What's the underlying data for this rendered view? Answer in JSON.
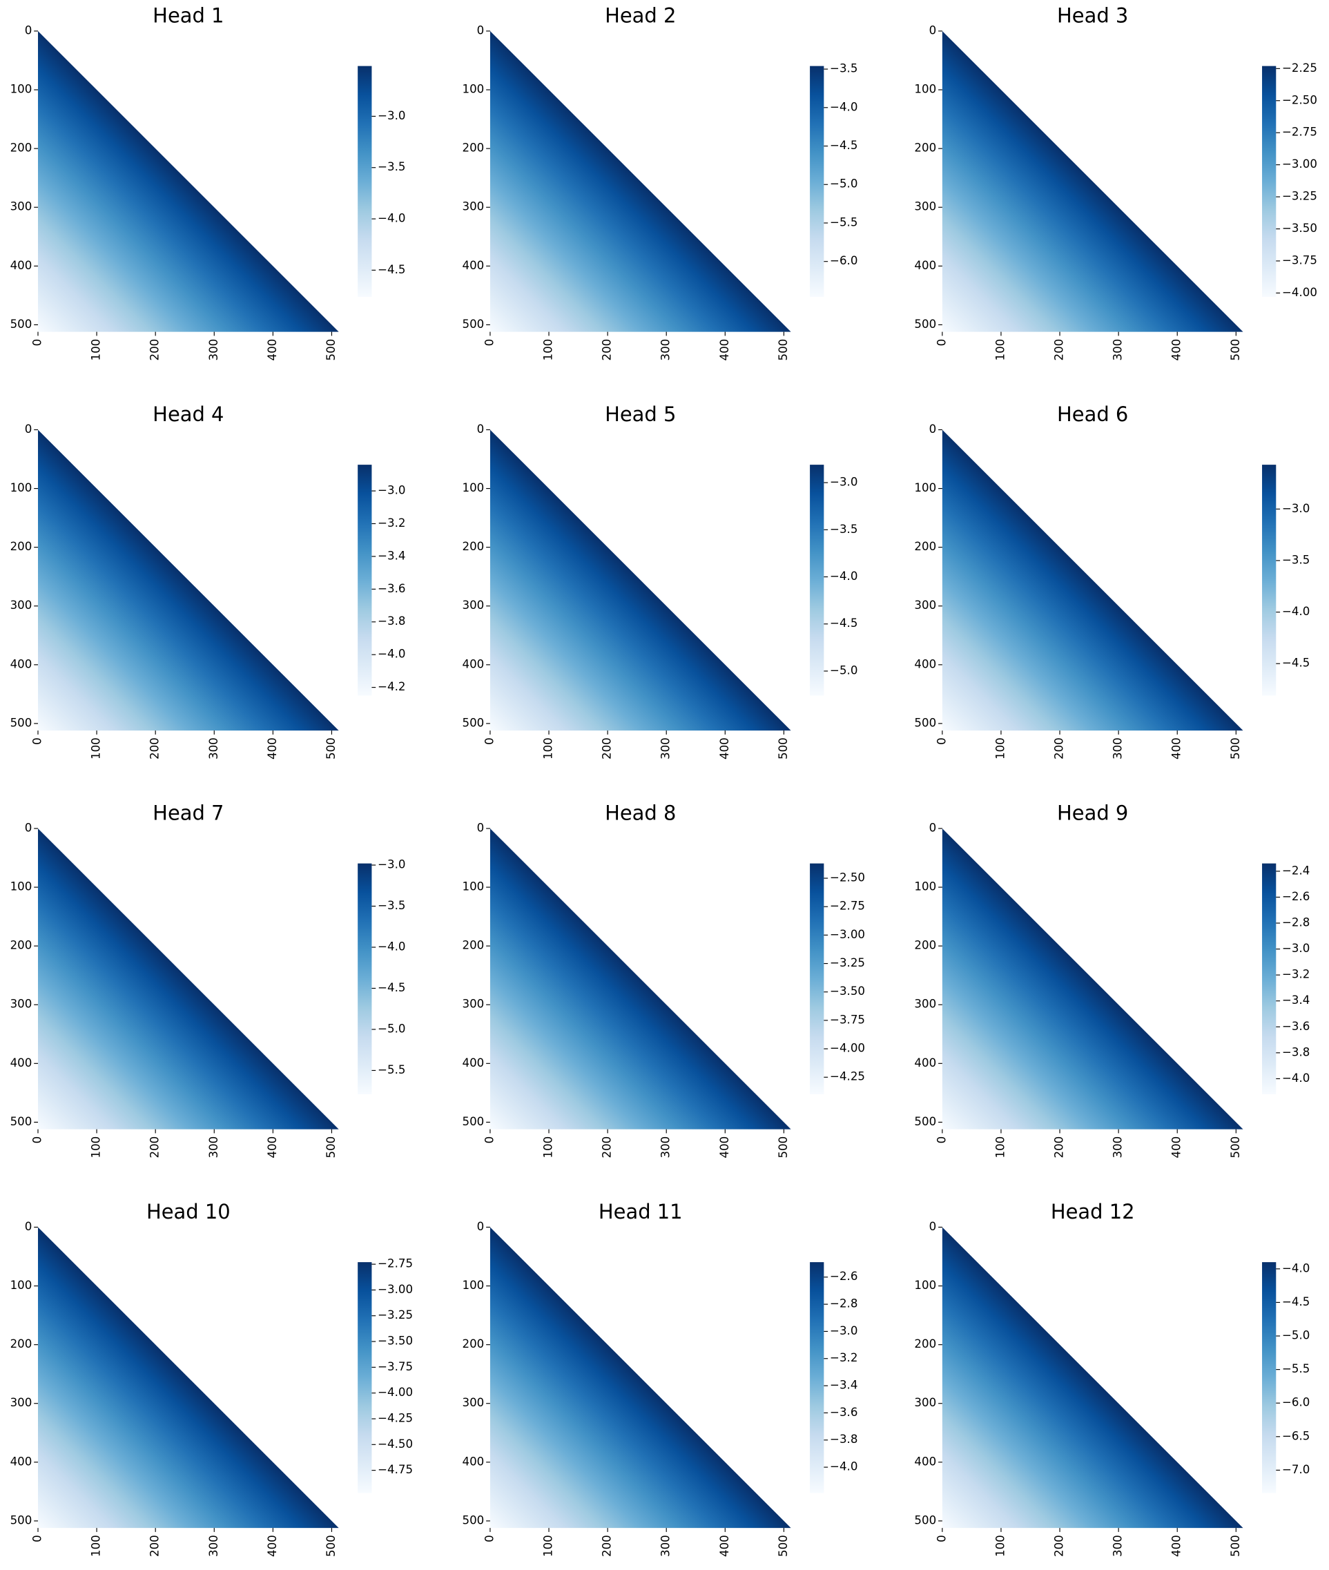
{
  "chart_data": [
    {
      "type": "heatmap",
      "title": "Head 1",
      "xlim": [
        0,
        512
      ],
      "ylim": [
        0,
        512
      ],
      "invert_y": true,
      "xticks": [
        0,
        100,
        200,
        300,
        400,
        500
      ],
      "yticks": [
        0,
        100,
        200,
        300,
        400,
        500
      ],
      "colormap": "Blues",
      "clim": [
        -4.76,
        -2.51
      ],
      "cticks": [
        {
          "value": -3,
          "label": "−3.0"
        },
        {
          "value": -3.5,
          "label": "−3.5"
        },
        {
          "value": -4,
          "label": "−4.0"
        },
        {
          "value": -4.5,
          "label": "−4.5"
        }
      ]
    },
    {
      "type": "heatmap",
      "title": "Head 2",
      "xlim": [
        0,
        512
      ],
      "ylim": [
        0,
        512
      ],
      "invert_y": true,
      "xticks": [
        0,
        100,
        200,
        300,
        400,
        500
      ],
      "yticks": [
        0,
        100,
        200,
        300,
        400,
        500
      ],
      "colormap": "Blues",
      "clim": [
        -6.46,
        -3.46
      ],
      "cticks": [
        {
          "value": -3.5,
          "label": "−3.5"
        },
        {
          "value": -4,
          "label": "−4.0"
        },
        {
          "value": -4.5,
          "label": "−4.5"
        },
        {
          "value": -5,
          "label": "−5.0"
        },
        {
          "value": -5.5,
          "label": "−5.5"
        },
        {
          "value": -6,
          "label": "−6.0"
        }
      ]
    },
    {
      "type": "heatmap",
      "title": "Head 3",
      "xlim": [
        0,
        512
      ],
      "ylim": [
        0,
        512
      ],
      "invert_y": true,
      "xticks": [
        0,
        100,
        200,
        300,
        400,
        500
      ],
      "yticks": [
        0,
        100,
        200,
        300,
        400,
        500
      ],
      "colormap": "Blues",
      "clim": [
        -4.03,
        -2.23
      ],
      "cticks": [
        {
          "value": -2.25,
          "label": "−2.25"
        },
        {
          "value": -2.5,
          "label": "−2.50"
        },
        {
          "value": -2.75,
          "label": "−2.75"
        },
        {
          "value": -3,
          "label": "−3.00"
        },
        {
          "value": -3.25,
          "label": "−3.25"
        },
        {
          "value": -3.5,
          "label": "−3.50"
        },
        {
          "value": -3.75,
          "label": "−3.75"
        },
        {
          "value": -4,
          "label": "−4.00"
        }
      ]
    },
    {
      "type": "heatmap",
      "title": "Head 4",
      "xlim": [
        0,
        512
      ],
      "ylim": [
        0,
        512
      ],
      "invert_y": true,
      "xticks": [
        0,
        100,
        200,
        300,
        400,
        500
      ],
      "yticks": [
        0,
        100,
        200,
        300,
        400,
        500
      ],
      "colormap": "Blues",
      "clim": [
        -4.25,
        -2.84
      ],
      "cticks": [
        {
          "value": -3,
          "label": "−3.0"
        },
        {
          "value": -3.2,
          "label": "−3.2"
        },
        {
          "value": -3.4,
          "label": "−3.4"
        },
        {
          "value": -3.6,
          "label": "−3.6"
        },
        {
          "value": -3.8,
          "label": "−3.8"
        },
        {
          "value": -4,
          "label": "−4.0"
        },
        {
          "value": -4.2,
          "label": "−4.2"
        }
      ]
    },
    {
      "type": "heatmap",
      "title": "Head 5",
      "xlim": [
        0,
        512
      ],
      "ylim": [
        0,
        512
      ],
      "invert_y": true,
      "xticks": [
        0,
        100,
        200,
        300,
        400,
        500
      ],
      "yticks": [
        0,
        100,
        200,
        300,
        400,
        500
      ],
      "colormap": "Blues",
      "clim": [
        -5.26,
        -2.81
      ],
      "cticks": [
        {
          "value": -3,
          "label": "−3.0"
        },
        {
          "value": -3.5,
          "label": "−3.5"
        },
        {
          "value": -4,
          "label": "−4.0"
        },
        {
          "value": -4.5,
          "label": "−4.5"
        },
        {
          "value": -5,
          "label": "−5.0"
        }
      ]
    },
    {
      "type": "heatmap",
      "title": "Head 6",
      "xlim": [
        0,
        512
      ],
      "ylim": [
        0,
        512
      ],
      "invert_y": true,
      "xticks": [
        0,
        100,
        200,
        300,
        400,
        500
      ],
      "yticks": [
        0,
        100,
        200,
        300,
        400,
        500
      ],
      "colormap": "Blues",
      "clim": [
        -4.81,
        -2.57
      ],
      "cticks": [
        {
          "value": -3,
          "label": "−3.0"
        },
        {
          "value": -3.5,
          "label": "−3.5"
        },
        {
          "value": -4,
          "label": "−4.0"
        },
        {
          "value": -4.5,
          "label": "−4.5"
        }
      ]
    },
    {
      "type": "heatmap",
      "title": "Head 7",
      "xlim": [
        0,
        512
      ],
      "ylim": [
        0,
        512
      ],
      "invert_y": true,
      "xticks": [
        0,
        100,
        200,
        300,
        400,
        500
      ],
      "yticks": [
        0,
        100,
        200,
        300,
        400,
        500
      ],
      "colormap": "Blues",
      "clim": [
        -5.79,
        -2.98
      ],
      "cticks": [
        {
          "value": -3,
          "label": "−3.0"
        },
        {
          "value": -3.5,
          "label": "−3.5"
        },
        {
          "value": -4,
          "label": "−4.0"
        },
        {
          "value": -4.5,
          "label": "−4.5"
        },
        {
          "value": -5,
          "label": "−5.0"
        },
        {
          "value": -5.5,
          "label": "−5.5"
        }
      ]
    },
    {
      "type": "heatmap",
      "title": "Head 8",
      "xlim": [
        0,
        512
      ],
      "ylim": [
        0,
        512
      ],
      "invert_y": true,
      "xticks": [
        0,
        100,
        200,
        300,
        400,
        500
      ],
      "yticks": [
        0,
        100,
        200,
        300,
        400,
        500
      ],
      "colormap": "Blues",
      "clim": [
        -4.4,
        -2.37
      ],
      "cticks": [
        {
          "value": -2.5,
          "label": "−2.50"
        },
        {
          "value": -2.75,
          "label": "−2.75"
        },
        {
          "value": -3,
          "label": "−3.00"
        },
        {
          "value": -3.25,
          "label": "−3.25"
        },
        {
          "value": -3.5,
          "label": "−3.50"
        },
        {
          "value": -3.75,
          "label": "−3.75"
        },
        {
          "value": -4,
          "label": "−4.00"
        },
        {
          "value": -4.25,
          "label": "−4.25"
        }
      ]
    },
    {
      "type": "heatmap",
      "title": "Head 9",
      "xlim": [
        0,
        512
      ],
      "ylim": [
        0,
        512
      ],
      "invert_y": true,
      "xticks": [
        0,
        100,
        200,
        300,
        400,
        500
      ],
      "yticks": [
        0,
        100,
        200,
        300,
        400,
        500
      ],
      "colormap": "Blues",
      "clim": [
        -4.12,
        -2.34
      ],
      "cticks": [
        {
          "value": -2.4,
          "label": "−2.4"
        },
        {
          "value": -2.6,
          "label": "−2.6"
        },
        {
          "value": -2.8,
          "label": "−2.8"
        },
        {
          "value": -3,
          "label": "−3.0"
        },
        {
          "value": -3.2,
          "label": "−3.2"
        },
        {
          "value": -3.4,
          "label": "−3.4"
        },
        {
          "value": -3.6,
          "label": "−3.6"
        },
        {
          "value": -3.8,
          "label": "−3.8"
        },
        {
          "value": -4,
          "label": "−4.0"
        }
      ]
    },
    {
      "type": "heatmap",
      "title": "Head 10",
      "xlim": [
        0,
        512
      ],
      "ylim": [
        0,
        512
      ],
      "invert_y": true,
      "xticks": [
        0,
        100,
        200,
        300,
        400,
        500
      ],
      "yticks": [
        0,
        100,
        200,
        300,
        400,
        500
      ],
      "colormap": "Blues",
      "clim": [
        -4.97,
        -2.73
      ],
      "cticks": [
        {
          "value": -2.75,
          "label": "−2.75"
        },
        {
          "value": -3,
          "label": "−3.00"
        },
        {
          "value": -3.25,
          "label": "−3.25"
        },
        {
          "value": -3.5,
          "label": "−3.50"
        },
        {
          "value": -3.75,
          "label": "−3.75"
        },
        {
          "value": -4,
          "label": "−4.00"
        },
        {
          "value": -4.25,
          "label": "−4.25"
        },
        {
          "value": -4.5,
          "label": "−4.50"
        },
        {
          "value": -4.75,
          "label": "−4.75"
        }
      ]
    },
    {
      "type": "heatmap",
      "title": "Head 11",
      "xlim": [
        0,
        512
      ],
      "ylim": [
        0,
        512
      ],
      "invert_y": true,
      "xticks": [
        0,
        100,
        200,
        300,
        400,
        500
      ],
      "yticks": [
        0,
        100,
        200,
        300,
        400,
        500
      ],
      "colormap": "Blues",
      "clim": [
        -4.19,
        -2.49
      ],
      "cticks": [
        {
          "value": -2.6,
          "label": "−2.6"
        },
        {
          "value": -2.8,
          "label": "−2.8"
        },
        {
          "value": -3,
          "label": "−3.0"
        },
        {
          "value": -3.2,
          "label": "−3.2"
        },
        {
          "value": -3.4,
          "label": "−3.4"
        },
        {
          "value": -3.6,
          "label": "−3.6"
        },
        {
          "value": -3.8,
          "label": "−3.8"
        },
        {
          "value": -4,
          "label": "−4.0"
        }
      ]
    },
    {
      "type": "heatmap",
      "title": "Head 12",
      "xlim": [
        0,
        512
      ],
      "ylim": [
        0,
        512
      ],
      "invert_y": true,
      "xticks": [
        0,
        100,
        200,
        300,
        400,
        500
      ],
      "yticks": [
        0,
        100,
        200,
        300,
        400,
        500
      ],
      "colormap": "Blues",
      "clim": [
        -7.34,
        -3.9
      ],
      "cticks": [
        {
          "value": -4,
          "label": "−4.0"
        },
        {
          "value": -4.5,
          "label": "−4.5"
        },
        {
          "value": -5,
          "label": "−5.0"
        },
        {
          "value": -5.5,
          "label": "−5.5"
        },
        {
          "value": -6,
          "label": "−6.0"
        },
        {
          "value": -6.5,
          "label": "−6.5"
        },
        {
          "value": -7,
          "label": "−7.0"
        }
      ]
    }
  ]
}
